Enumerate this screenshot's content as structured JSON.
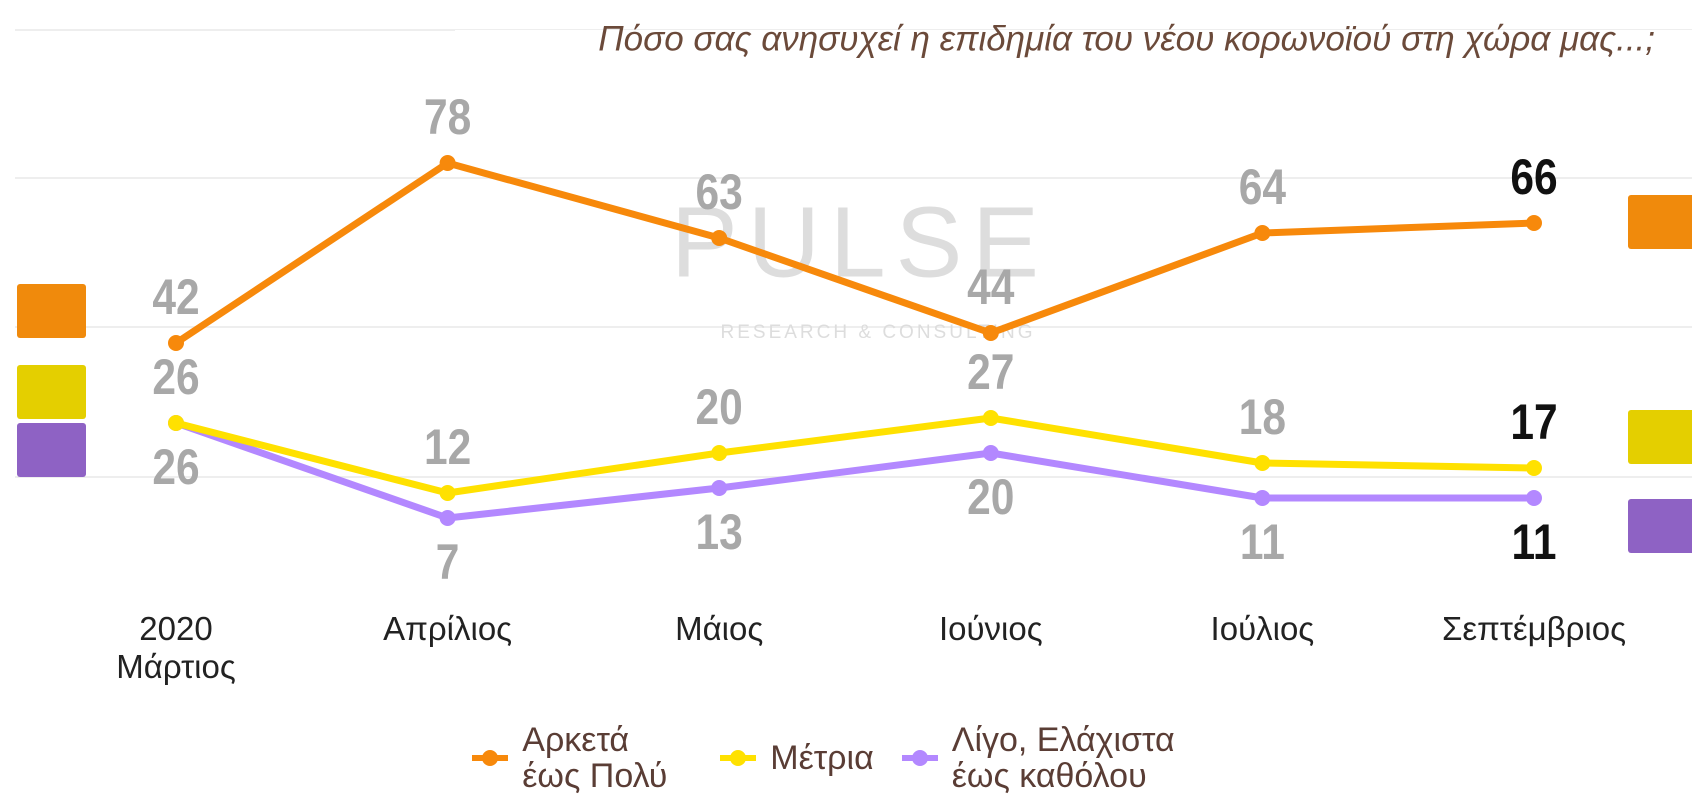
{
  "chart_data": {
    "type": "line",
    "title": "Πόσο σας ανησυχεί η επιδημία του νέου κορωνοϊού στη χώρα μας...;",
    "watermark": {
      "title": "PULSE",
      "subtitle": "RESEARCH & CONSULTING"
    },
    "categories": [
      "2020 Μάρτιος",
      "Απρίλιος",
      "Μάιος",
      "Ιούνιος",
      "Ιούλιος",
      "Σεπτέμβριος"
    ],
    "series": [
      {
        "name": "Αρκετά έως Πολύ",
        "color": "#f7890b",
        "values": [
          42,
          78,
          63,
          44,
          64,
          66
        ]
      },
      {
        "name": "Μέτρια",
        "color": "#ffe100",
        "values": [
          26,
          12,
          20,
          27,
          18,
          17
        ]
      },
      {
        "name": "Λίγο, Ελάχιστα έως καθόλου",
        "color": "#b388ff",
        "values": [
          26,
          7,
          13,
          20,
          11,
          11
        ]
      }
    ],
    "ylim": [
      0,
      100
    ]
  }
}
